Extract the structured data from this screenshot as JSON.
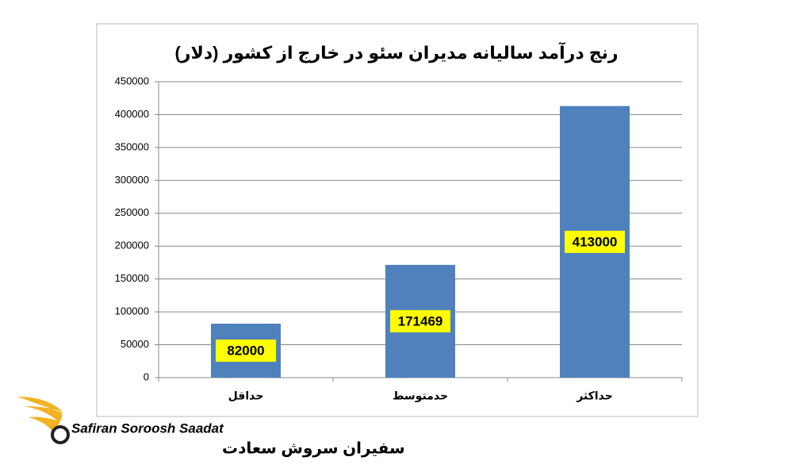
{
  "chart_data": {
    "type": "bar",
    "title": "رنج درآمد سالیانه مدیران سئو در خارج از کشور (دلار)",
    "categories": [
      "حداقل",
      "حدمتوسط",
      "حداکثر"
    ],
    "values": [
      82000,
      171469,
      413000
    ],
    "color": "#4f81bd",
    "ylim": [
      0,
      450000
    ],
    "yticks": [
      0,
      50000,
      100000,
      150000,
      200000,
      250000,
      300000,
      350000,
      400000,
      450000
    ],
    "grid": true
  },
  "logo": {
    "latin": "Safiran Soroosh Saadat",
    "persian": "سفیران سروش سعادت"
  }
}
